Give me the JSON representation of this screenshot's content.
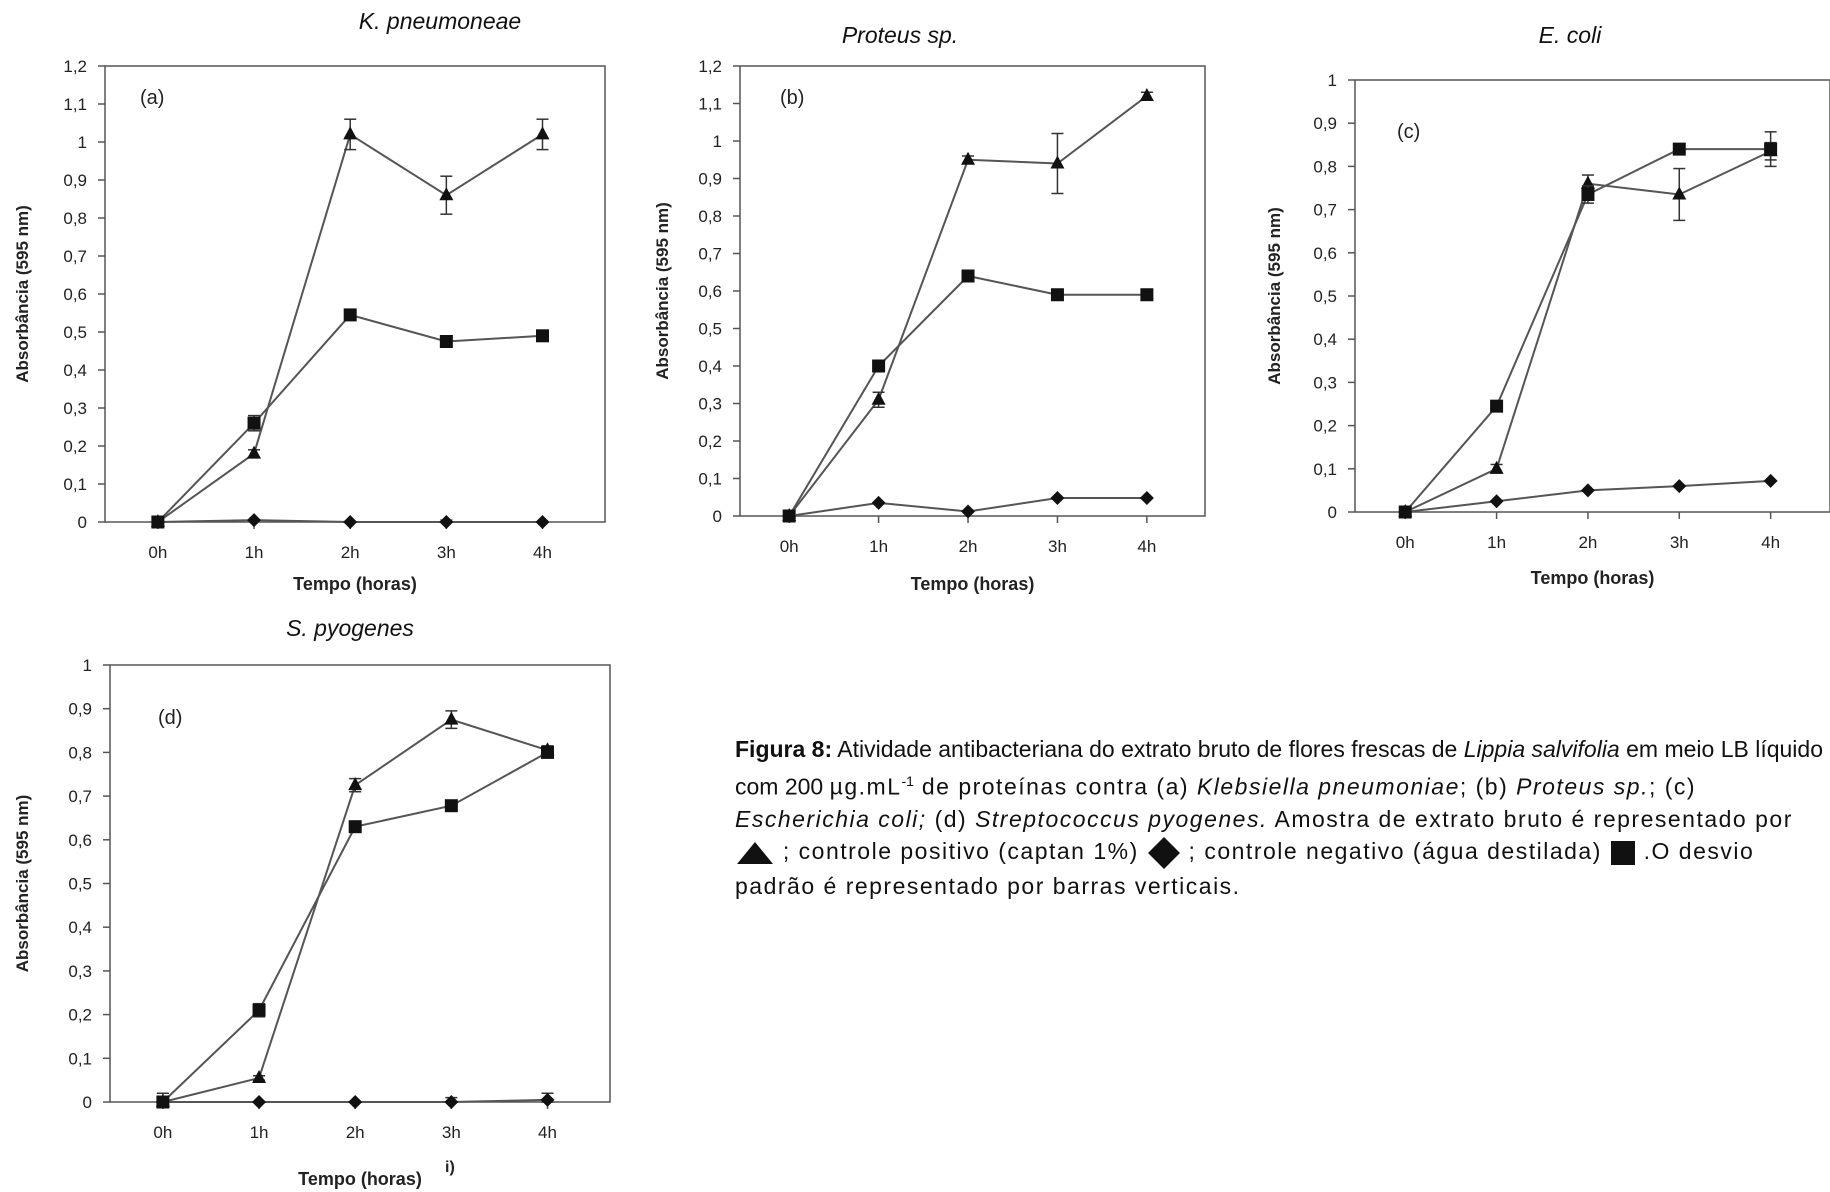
{
  "charts": [
    {
      "id": "a",
      "species": "K. pneumoneae",
      "tag": "(a)",
      "ylim": [
        0,
        1.2
      ],
      "yticks": [
        "0",
        "0,1",
        "0,2",
        "0,3",
        "0,4",
        "0,5",
        "0,6",
        "0,7",
        "0,8",
        "0,9",
        "1",
        "1,1",
        "1,2"
      ]
    },
    {
      "id": "b",
      "species": "Proteus sp.",
      "tag": "(b)",
      "ylim": [
        0,
        1.2
      ],
      "yticks": [
        "0",
        "0,1",
        "0,2",
        "0,3",
        "0,4",
        "0,5",
        "0,6",
        "0,7",
        "0,8",
        "0,9",
        "1",
        "1,1",
        "1,2"
      ]
    },
    {
      "id": "c",
      "species": "E. coli",
      "tag": "(c)",
      "ylim": [
        0,
        1.0
      ],
      "yticks": [
        "0",
        "0,1",
        "0,2",
        "0,3",
        "0,4",
        "0,5",
        "0,6",
        "0,7",
        "0,8",
        "0,9",
        "1"
      ]
    },
    {
      "id": "d",
      "species": "S. pyogenes",
      "tag": "(d)",
      "ylim": [
        0,
        1.0
      ],
      "yticks": [
        "0",
        "0,1",
        "0,2",
        "0,3",
        "0,4",
        "0,5",
        "0,6",
        "0,7",
        "0,8",
        "0,9",
        "1"
      ],
      "stray_mark": "i)"
    }
  ],
  "axis_labels": {
    "xlabel": "Tempo (horas)",
    "ylabel": "Absorbância (595 nm)"
  },
  "chart_data": [
    {
      "type": "line",
      "panel": "a",
      "x": [
        "0h",
        "1h",
        "2h",
        "3h",
        "4h"
      ],
      "ylim": [
        0,
        1.2
      ],
      "grid": false,
      "series": [
        {
          "marker": "triangle",
          "values": [
            0.0,
            0.18,
            1.02,
            0.86,
            1.02
          ],
          "errors": [
            0.0,
            0.01,
            0.04,
            0.05,
            0.04
          ]
        },
        {
          "marker": "square",
          "values": [
            0.0,
            0.26,
            0.545,
            0.475,
            0.49
          ],
          "errors": [
            0.0,
            0.02,
            0.01,
            0.01,
            0.01
          ]
        },
        {
          "marker": "diamond",
          "values": [
            0.0,
            0.005,
            0.0,
            0.0,
            0.0
          ],
          "errors": [
            0.0,
            0.0,
            0.0,
            0.005,
            0.0
          ]
        }
      ]
    },
    {
      "type": "line",
      "panel": "b",
      "x": [
        "0h",
        "1h",
        "2h",
        "3h",
        "4h"
      ],
      "ylim": [
        0,
        1.2
      ],
      "grid": false,
      "series": [
        {
          "marker": "triangle",
          "values": [
            0.0,
            0.31,
            0.95,
            0.94,
            1.12
          ],
          "errors": [
            0.0,
            0.02,
            0.01,
            0.08,
            0.01
          ]
        },
        {
          "marker": "square",
          "values": [
            0.0,
            0.4,
            0.64,
            0.59,
            0.59
          ],
          "errors": [
            0.0,
            0.01,
            0.01,
            0.01,
            0.01
          ]
        },
        {
          "marker": "diamond",
          "values": [
            0.0,
            0.035,
            0.012,
            0.048,
            0.048
          ],
          "errors": [
            0.0,
            0.0,
            0.0,
            0.0,
            0.0
          ]
        }
      ]
    },
    {
      "type": "line",
      "panel": "c",
      "x": [
        "0h",
        "1h",
        "2h",
        "3h",
        "4h"
      ],
      "ylim": [
        0,
        1.0
      ],
      "grid": false,
      "series": [
        {
          "marker": "triangle",
          "values": [
            0.0,
            0.1,
            0.76,
            0.735,
            0.835
          ],
          "errors": [
            0.0,
            0.01,
            0.02,
            0.06,
            0.02
          ]
        },
        {
          "marker": "square",
          "values": [
            0.0,
            0.245,
            0.735,
            0.84,
            0.84
          ],
          "errors": [
            0.0,
            0.0,
            0.02,
            0.0,
            0.04
          ]
        },
        {
          "marker": "diamond",
          "values": [
            0.0,
            0.025,
            0.05,
            0.06,
            0.072
          ],
          "errors": [
            0.0,
            0.0,
            0.0,
            0.0,
            0.0
          ]
        }
      ]
    },
    {
      "type": "line",
      "panel": "d",
      "x": [
        "0h",
        "1h",
        "2h",
        "3h",
        "4h"
      ],
      "ylim": [
        0,
        1.0
      ],
      "grid": false,
      "series": [
        {
          "marker": "triangle",
          "values": [
            0.0,
            0.055,
            0.725,
            0.875,
            0.805
          ],
          "errors": [
            0.0,
            0.005,
            0.015,
            0.02,
            0.01
          ]
        },
        {
          "marker": "square",
          "values": [
            0.0,
            0.21,
            0.63,
            0.678,
            0.8
          ],
          "errors": [
            0.02,
            0.015,
            0.005,
            0.005,
            0.01
          ]
        },
        {
          "marker": "diamond",
          "values": [
            0.0,
            0.0,
            0.0,
            0.0,
            0.005
          ],
          "errors": [
            0.02,
            0.0,
            0.0,
            0.01,
            0.015
          ]
        }
      ]
    }
  ],
  "caption": {
    "figure_label": "Figura 8:",
    "t1": " Atividade antibacteriana do extrato bruto de flores frescas de ",
    "plant": "Lippia salvifolia",
    "t2": " em meio LB líquido com 200 ",
    "unit": "µg.mL",
    "unit_exp": "-1",
    "t3": " de proteínas contra (a) ",
    "sp_a": "Klebsiella pneumoniae",
    "t4": "; (b) ",
    "sp_b": "Proteus sp.",
    "t5": "; (c) ",
    "sp_c": "Escherichia coli;",
    "t6": " (d) ",
    "sp_d": "Streptococcus pyogenes.",
    "t7": " Amostra de extrato bruto é representado por ",
    "t8": " ; controle positivo (captan 1%) ",
    "t9": " ; controle negativo (água destilada) ",
    "t10": " .O desvio padrão é representado por barras verticais."
  }
}
